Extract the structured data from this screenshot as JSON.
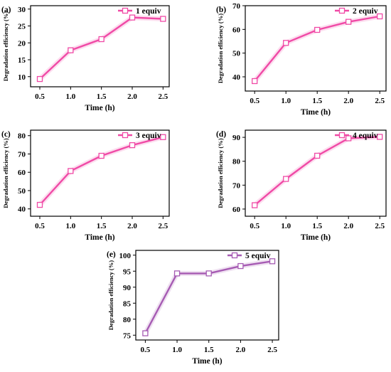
{
  "chart_data": [
    {
      "type": "line",
      "panel_label": "(a)",
      "xlabel": "Time (h)",
      "ylabel": "Degradation efficiency (%)",
      "x": [
        0.5,
        1.0,
        1.5,
        2.0,
        2.5
      ],
      "x_tick_labels": [
        "0.5",
        "1.0",
        "1.5",
        "2.0",
        "2.5"
      ],
      "y_ticks": [
        10,
        15,
        20,
        25,
        30
      ],
      "ylim": [
        7,
        31
      ],
      "xlim": [
        0.35,
        2.6
      ],
      "series": [
        {
          "name": "1 equiv",
          "values": [
            9.3,
            17.8,
            21.1,
            27.5,
            27.1
          ],
          "color": "#f04aa6"
        }
      ],
      "legend_position": "top-right",
      "grid": false
    },
    {
      "type": "line",
      "panel_label": "(b)",
      "xlabel": "Time (h)",
      "ylabel": "Degradation efficiency (%)",
      "x": [
        0.5,
        1.0,
        1.5,
        2.0,
        2.5
      ],
      "x_tick_labels": [
        "0.5",
        "1.0",
        "1.5",
        "2.0",
        "2.5"
      ],
      "y_ticks": [
        40,
        50,
        60,
        70
      ],
      "ylim": [
        34,
        70
      ],
      "xlim": [
        0.35,
        2.6
      ],
      "series": [
        {
          "name": "2 equiv",
          "values": [
            38.2,
            54.3,
            59.8,
            63.2,
            65.5
          ],
          "color": "#f04aa6"
        }
      ],
      "legend_position": "top-right",
      "grid": false
    },
    {
      "type": "line",
      "panel_label": "(c)",
      "xlabel": "Time (h)",
      "ylabel": "Degradation efficiency (%)",
      "x": [
        0.5,
        1.0,
        1.5,
        2.0,
        2.5
      ],
      "x_tick_labels": [
        "0.5",
        "1.0",
        "1.5",
        "2.0",
        "2.5"
      ],
      "y_ticks": [
        40,
        50,
        60,
        70,
        80
      ],
      "ylim": [
        36,
        83
      ],
      "xlim": [
        0.35,
        2.6
      ],
      "series": [
        {
          "name": "3 equiv",
          "values": [
            42.2,
            60.7,
            69.0,
            74.8,
            79.2
          ],
          "color": "#f04aa6"
        }
      ],
      "legend_position": "top-right",
      "grid": false
    },
    {
      "type": "line",
      "panel_label": "(d)",
      "xlabel": "Time (h)",
      "ylabel": "Degradation efficiency (%)",
      "x": [
        0.5,
        1.0,
        1.5,
        2.0,
        2.5
      ],
      "x_tick_labels": [
        "0.5",
        "1.0",
        "1.5",
        "2.0",
        "2.5"
      ],
      "y_ticks": [
        60,
        70,
        80,
        90
      ],
      "ylim": [
        57,
        93
      ],
      "xlim": [
        0.35,
        2.6
      ],
      "series": [
        {
          "name": "4 equiv",
          "values": [
            61.6,
            72.6,
            82.3,
            89.6,
            90.2
          ],
          "color": "#f04aa6"
        }
      ],
      "legend_position": "top-right",
      "grid": false
    },
    {
      "type": "line",
      "panel_label": "(e)",
      "xlabel": "Time (h)",
      "ylabel": "Degradation efficiency (%)",
      "x": [
        0.5,
        1.0,
        1.5,
        2.0,
        2.5
      ],
      "x_tick_labels": [
        "0.5",
        "1.0",
        "1.5",
        "2.0",
        "2.5"
      ],
      "y_ticks": [
        75,
        80,
        85,
        90,
        95,
        100
      ],
      "ylim": [
        73.5,
        101.5
      ],
      "xlim": [
        0.35,
        2.6
      ],
      "series": [
        {
          "name": "5 equiv",
          "values": [
            75.6,
            94.3,
            94.3,
            96.6,
            98.1
          ],
          "color": "#a65bb3"
        }
      ],
      "legend_position": "top-right",
      "grid": false
    }
  ]
}
